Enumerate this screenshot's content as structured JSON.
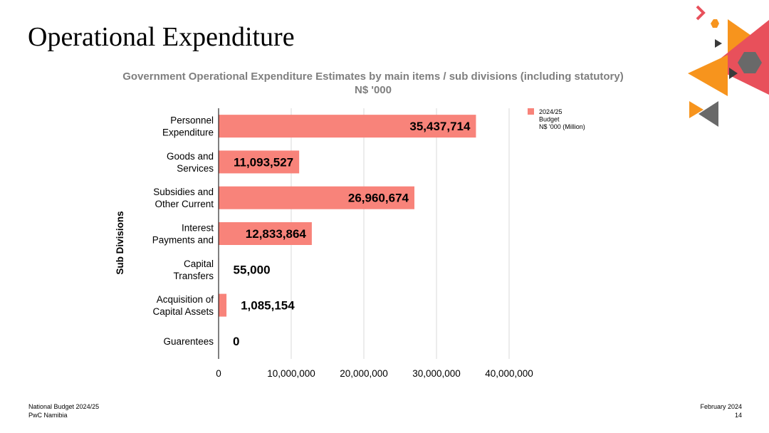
{
  "slide": {
    "title": "Operational Expenditure",
    "footer_left": [
      "National Budget 2024/25",
      "PwC Namibia"
    ],
    "footer_right": [
      "February 2024",
      "14"
    ]
  },
  "colors": {
    "bar": "#f8837a",
    "grid": "#d9d9d9",
    "axis": "#000000",
    "title_gray": "#7f7f7f",
    "deco_orange": "#f7941d",
    "deco_red": "#e8505b",
    "deco_gray": "#696969"
  },
  "chart_data": {
    "type": "bar",
    "orientation": "horizontal",
    "title": [
      "Government Operational Expenditure Estimates by main items / sub divisions (including statutory)",
      "N$ '000"
    ],
    "ylabel": "Sub Divisions",
    "xlabel": "",
    "categories": [
      [
        "Personnel",
        "Expenditure"
      ],
      [
        "Goods and",
        "Services"
      ],
      [
        "Subsidies and",
        "Other Current"
      ],
      [
        "Interest",
        "Payments and"
      ],
      [
        "Capital",
        "Transfers"
      ],
      [
        "Acquisition of",
        "Capital Assets"
      ],
      [
        "Guarentees"
      ]
    ],
    "series": [
      {
        "name": [
          "2024/25",
          "Budget",
          "N$ '000 (Million)"
        ],
        "values": [
          35437714,
          11093527,
          26960674,
          12833864,
          55000,
          1085154,
          0
        ],
        "labels": [
          "35,437,714",
          "11,093,527",
          "26,960,674",
          "12,833,864",
          "55,000",
          "1,085,154",
          "0"
        ]
      }
    ],
    "xlim": [
      0,
      40000000
    ],
    "ticks": [
      0,
      10000000,
      20000000,
      30000000,
      40000000
    ],
    "tick_labels": [
      "0",
      "10,000,000",
      "20,000,000",
      "30,000,000",
      "40,000,000"
    ],
    "grid": true,
    "legend_position": "top-right"
  }
}
